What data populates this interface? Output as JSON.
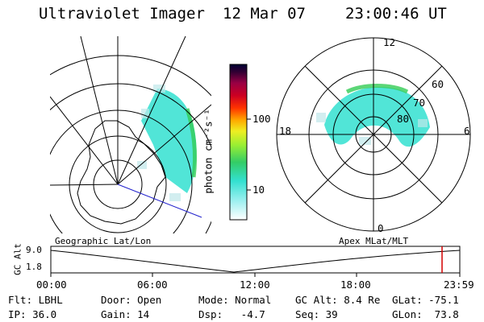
{
  "header": {
    "title": "Ultraviolet Imager",
    "date": "12 Mar 07",
    "time": "23:00:46 UT"
  },
  "colorbar": {
    "unit_label": "photon cm⁻²s⁻¹",
    "ticks": [
      "100",
      "10"
    ],
    "scale": "log"
  },
  "left_panel": {
    "caption": "Geographic Lat/Lon"
  },
  "right_panel": {
    "caption": "Apex MLat/MLT",
    "mlt_labels": {
      "top": "12",
      "left": "18",
      "right": "6",
      "bottom": "0"
    },
    "lat_labels": [
      "60",
      "70",
      "80"
    ]
  },
  "timeline": {
    "ylabel": "GC Alt",
    "y_ticks": [
      "9.0",
      "1.8"
    ],
    "x_ticks": [
      "00:00",
      "06:00",
      "12:00",
      "18:00",
      "23:59"
    ],
    "marker_time": "23:00",
    "marker_color": "#d40000"
  },
  "status": {
    "flt": "Flt: LBHL",
    "ip": "IP: 36.0",
    "door": "Door: Open",
    "gain": "Gain: 14",
    "mode": "Mode: Normal",
    "dsp": "Dsp:   -4.7",
    "gcalt": "GC Alt: 8.4 Re",
    "seq": "Seq: 39",
    "glat": "GLat: -75.1",
    "glon": "GLon:  73.8"
  },
  "colors": {
    "aurora_fill": "#33e0d0",
    "aurora_edge": "#33cc55",
    "track_line": "#1f1fcc"
  }
}
